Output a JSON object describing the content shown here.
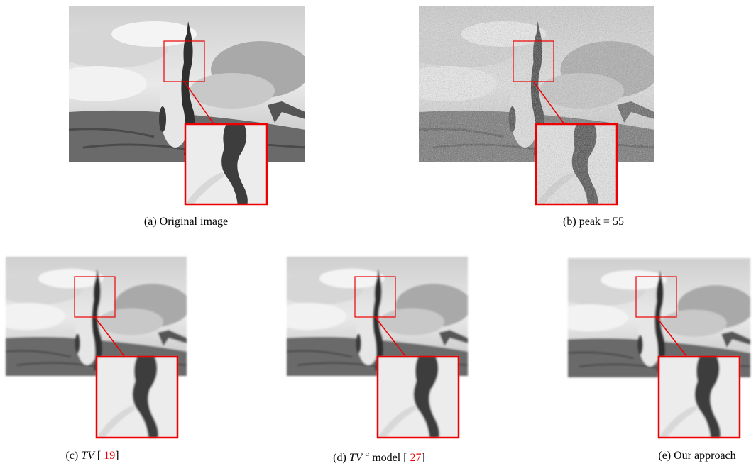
{
  "panels": [
    {
      "tag": "(a)",
      "caption": [
        {
          "text": "Original image",
          "style": "plain"
        }
      ]
    },
    {
      "tag": "(b)",
      "caption": [
        {
          "text": "peak = 55",
          "style": "plain"
        }
      ]
    },
    {
      "tag": "(c)",
      "caption": [
        {
          "text": "TV",
          "style": "italic"
        },
        {
          "text": "[",
          "style": "plain"
        },
        {
          "text": "19",
          "style": "cite"
        },
        {
          "text": "]",
          "style": "plain"
        }
      ]
    },
    {
      "tag": "(d)",
      "caption": [
        {
          "text": "TV",
          "style": "italic"
        },
        {
          "text": "α",
          "style": "sup"
        },
        {
          "text": "model",
          "style": "plain"
        },
        {
          "text": "[",
          "style": "plain"
        },
        {
          "text": "27",
          "style": "cite"
        },
        {
          "text": "]",
          "style": "plain"
        }
      ]
    },
    {
      "tag": "(e)",
      "caption": [
        {
          "text": "Our approach",
          "style": "plain"
        }
      ]
    }
  ]
}
